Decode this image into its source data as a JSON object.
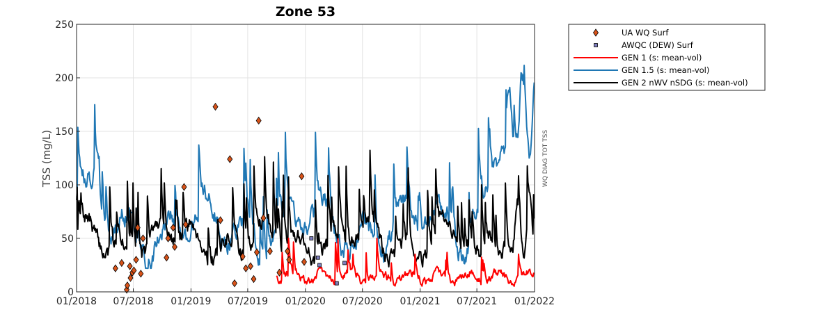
{
  "chart_data": {
    "type": "line",
    "title": "Zone 53",
    "xlabel": "",
    "ylabel": "TSS (mg/L)",
    "side_label": "WQ DIAG TOT TSS",
    "xlim": [
      "2018-01-01",
      "2022-01-01"
    ],
    "ylim": [
      0,
      250
    ],
    "xticks": [
      "01/2018",
      "07/2018",
      "01/2019",
      "07/2019",
      "01/2020",
      "07/2020",
      "01/2021",
      "07/2021",
      "01/2022"
    ],
    "yticks": [
      0,
      50,
      100,
      150,
      200,
      250
    ],
    "grid": true,
    "legend_position": "outside-right-top",
    "series": [
      {
        "name": "UA WQ Surf",
        "kind": "marker-diamond",
        "color": "#d95319",
        "points": [
          [
            "2018-05-05",
            22
          ],
          [
            "2018-05-25",
            27
          ],
          [
            "2018-06-10",
            2
          ],
          [
            "2018-06-12",
            6
          ],
          [
            "2018-06-20",
            24
          ],
          [
            "2018-06-22",
            13
          ],
          [
            "2018-06-28",
            18
          ],
          [
            "2018-07-03",
            20
          ],
          [
            "2018-07-10",
            30
          ],
          [
            "2018-07-15",
            60
          ],
          [
            "2018-07-25",
            17
          ],
          [
            "2018-08-01",
            50
          ],
          [
            "2018-10-15",
            32
          ],
          [
            "2018-10-20",
            50
          ],
          [
            "2018-11-05",
            60
          ],
          [
            "2018-11-10",
            42
          ],
          [
            "2018-12-10",
            98
          ],
          [
            "2018-12-15",
            63
          ],
          [
            "2019-03-20",
            173
          ],
          [
            "2019-04-05",
            67
          ],
          [
            "2019-05-05",
            124
          ],
          [
            "2019-05-20",
            8
          ],
          [
            "2019-06-15",
            33
          ],
          [
            "2019-06-25",
            22
          ],
          [
            "2019-07-10",
            24
          ],
          [
            "2019-07-20",
            12
          ],
          [
            "2019-07-30",
            37
          ],
          [
            "2019-08-05",
            160
          ],
          [
            "2019-08-20",
            69
          ],
          [
            "2019-09-10",
            38
          ],
          [
            "2019-10-10",
            18
          ],
          [
            "2019-11-05",
            38
          ],
          [
            "2019-11-10",
            30
          ],
          [
            "2019-12-20",
            108
          ],
          [
            "2019-12-28",
            28
          ]
        ]
      },
      {
        "name": "AWQC (DEW) Surf",
        "kind": "marker-square",
        "color": "#7e7ebd",
        "points": [
          [
            "2020-01-20",
            50
          ],
          [
            "2020-02-10",
            32
          ],
          [
            "2020-02-15",
            25
          ],
          [
            "2020-04-10",
            8
          ],
          [
            "2020-05-05",
            27
          ]
        ]
      },
      {
        "name": "GEN 1 (s: mean-vol)",
        "kind": "line",
        "color": "#ff0000",
        "range": [
          "2019-10-01",
          "2022-01-01"
        ]
      },
      {
        "name": "GEN 1.5 (s: mean-vol)",
        "kind": "line",
        "color": "#1f77b4",
        "range": [
          "2018-01-01",
          "2022-01-01"
        ]
      },
      {
        "name": "GEN 2 nWV nSDG (s: mean-vol)",
        "kind": "line",
        "color": "#000000",
        "range": [
          "2018-01-01",
          "2022-01-01"
        ]
      }
    ]
  }
}
